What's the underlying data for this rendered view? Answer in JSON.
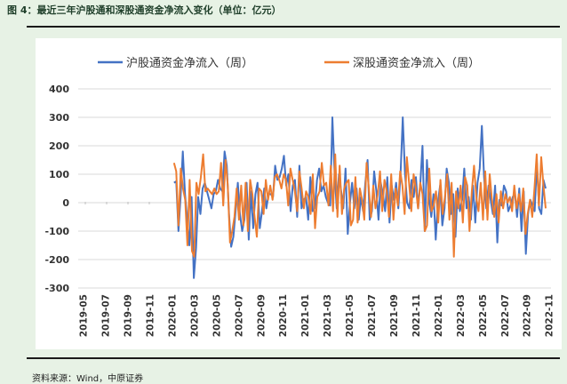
{
  "figure": {
    "title": "图 4：最近三年沪股通和深股通资金净流入变化（单位：亿元）",
    "source": "资料来源：Wind，中原证券"
  },
  "colors": {
    "series_shanghai": "#4472c4",
    "series_shenzhen": "#ed7d31",
    "grid": "#d9d9d9",
    "background": "#e7f2e5"
  },
  "chart_data": {
    "type": "line",
    "title": "",
    "xlabel": "",
    "ylabel": "",
    "ylim": [
      -300,
      400
    ],
    "yticks": [
      400,
      300,
      200,
      100,
      0,
      -100,
      -200,
      -300
    ],
    "grid": "horizontal",
    "legend_position": "top-center",
    "xtick_labels": [
      "2019-05",
      "2019-07",
      "2019-09",
      "2019-11",
      "2020-01",
      "2020-03",
      "2020-05",
      "2020-07",
      "2020-09",
      "2020-11",
      "2021-01",
      "2021-03",
      "2021-05",
      "2021-07",
      "2021-09",
      "2021-11",
      "2022-01",
      "2022-03",
      "2022-05",
      "2022-07",
      "2022-09",
      "2022-11"
    ],
    "x_start": "2019-05",
    "x_end": "2022-12",
    "series": [
      {
        "name": "沪股通资金净流入（周）",
        "values": [
          70,
          75,
          -100,
          20,
          180,
          30,
          -60,
          -150,
          20,
          -265,
          -160,
          20,
          -40,
          50,
          70,
          40,
          10,
          -20,
          30,
          40,
          80,
          50,
          40,
          180,
          130,
          -40,
          -155,
          -120,
          -30,
          70,
          -40,
          -100,
          -60,
          70,
          -130,
          40,
          -90,
          30,
          70,
          -90,
          -30,
          50,
          -20,
          30,
          30,
          20,
          130,
          80,
          90,
          120,
          165,
          60,
          100,
          -30,
          60,
          80,
          -50,
          130,
          -20,
          10,
          20,
          -60,
          90,
          -30,
          -20,
          80,
          120,
          40,
          60,
          20,
          0,
          -10,
          300,
          110,
          -20,
          100,
          40,
          -20,
          120,
          -110,
          0,
          70,
          -20,
          50,
          -60,
          20,
          -30,
          70,
          150,
          -60,
          -30,
          110,
          40,
          -60,
          70,
          30,
          -30,
          90,
          -70,
          60,
          10,
          70,
          -20,
          100,
          300,
          110,
          0,
          -20,
          80,
          20,
          90,
          -20,
          70,
          200,
          -100,
          150,
          10,
          -50,
          30,
          -130,
          0,
          60,
          -80,
          -20,
          120,
          70,
          -40,
          30,
          -120,
          50,
          -30,
          10,
          120,
          -20,
          20,
          -60,
          60,
          -70,
          70,
          120,
          270,
          90,
          -20,
          60,
          10,
          -40,
          60,
          -140,
          10,
          -10,
          60,
          40,
          -30,
          -10,
          20,
          30,
          -50,
          50,
          -100,
          40,
          -180,
          -40,
          10,
          -10,
          -30,
          140,
          -20,
          -40,
          80,
          50
        ]
      },
      {
        "name": "深股通资金净流入（周）",
        "values": [
          140,
          110,
          -80,
          120,
          50,
          10,
          -150,
          80,
          -170,
          -190,
          70,
          30,
          90,
          170,
          40,
          50,
          40,
          30,
          50,
          30,
          40,
          140,
          -10,
          150,
          60,
          -140,
          -100,
          -50,
          50,
          -60,
          60,
          -80,
          70,
          -100,
          80,
          30,
          -50,
          -120,
          50,
          40,
          -40,
          80,
          10,
          60,
          10,
          90,
          100,
          80,
          50,
          100,
          80,
          -10,
          120,
          80,
          40,
          -30,
          110,
          50,
          -20,
          40,
          20,
          -40,
          100,
          -90,
          20,
          40,
          140,
          60,
          70,
          -10,
          130,
          -30,
          170,
          -50,
          130,
          -40,
          50,
          70,
          80,
          -80,
          -60,
          90,
          -70,
          50,
          10,
          -60,
          140,
          50,
          -50,
          60,
          -20,
          30,
          110,
          -30,
          80,
          40,
          -50,
          100,
          -60,
          50,
          -10,
          110,
          60,
          -40,
          160,
          70,
          -30,
          100,
          50,
          -20,
          70,
          30,
          -100,
          -80,
          120,
          -30,
          -10,
          40,
          -70,
          80,
          -40,
          20,
          100,
          -60,
          70,
          -190,
          40,
          -20,
          60,
          -70,
          90,
          60,
          -100,
          40,
          130,
          20,
          -30,
          70,
          -60,
          110,
          -60,
          100,
          10,
          -50,
          30,
          -70,
          40,
          -20,
          30,
          0,
          20,
          -30,
          60,
          -20,
          30,
          -30,
          50,
          -110,
          -40,
          10,
          -50,
          50,
          170,
          -10,
          160,
          60,
          -20
        ]
      }
    ]
  }
}
